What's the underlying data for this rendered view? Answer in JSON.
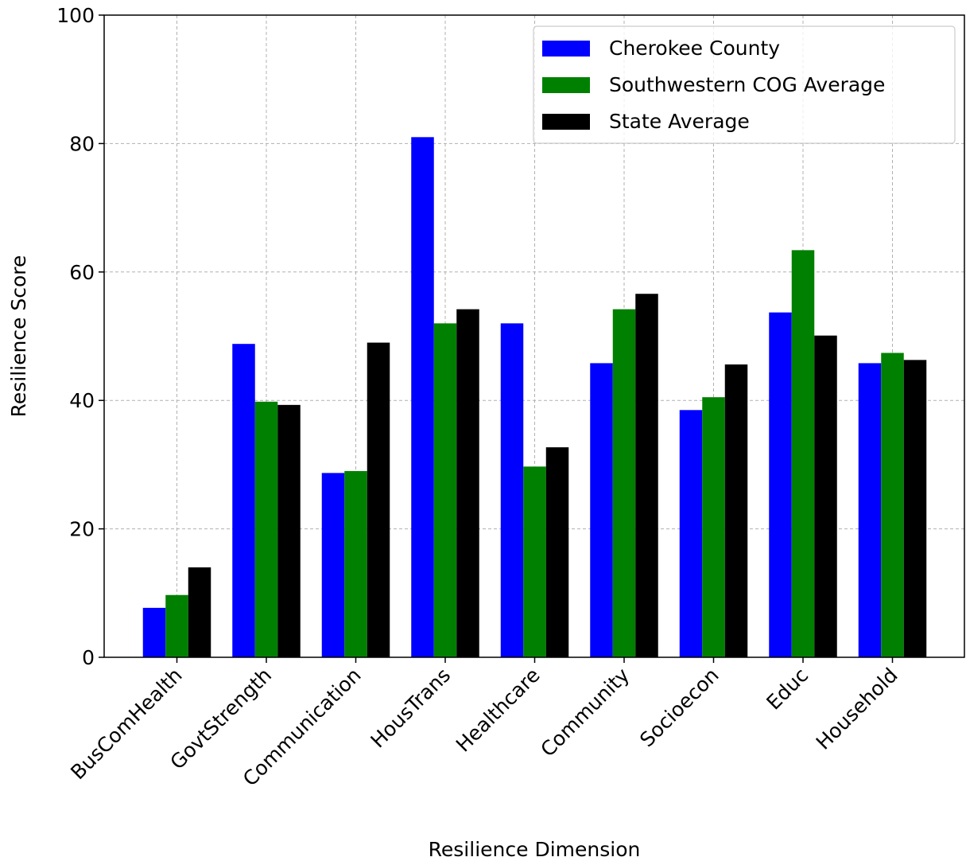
{
  "chart_data": {
    "type": "bar",
    "title": "",
    "xlabel": "Resilience Dimension",
    "ylabel": "Resilience Score",
    "ylim": [
      0,
      100
    ],
    "yticks": [
      0,
      20,
      40,
      60,
      80,
      100
    ],
    "grid": true,
    "legend_position": "top-right",
    "categories": [
      "BusComHealth",
      "GovtStrength",
      "Communication",
      "HousTrans",
      "Healthcare",
      "Community",
      "Socioecon",
      "Educ",
      "Household"
    ],
    "series": [
      {
        "name": "Cherokee County",
        "color": "#0000ff",
        "values": [
          7.7,
          48.8,
          28.7,
          81.0,
          52.0,
          45.8,
          38.5,
          53.7,
          45.8
        ]
      },
      {
        "name": "Southwestern COG Average",
        "color": "#008000",
        "values": [
          9.7,
          39.8,
          29.0,
          52.0,
          29.7,
          54.2,
          40.5,
          63.4,
          47.4
        ]
      },
      {
        "name": "State Average",
        "color": "#000000",
        "values": [
          14.0,
          39.3,
          49.0,
          54.2,
          32.7,
          56.6,
          45.6,
          50.1,
          46.3
        ]
      }
    ]
  }
}
